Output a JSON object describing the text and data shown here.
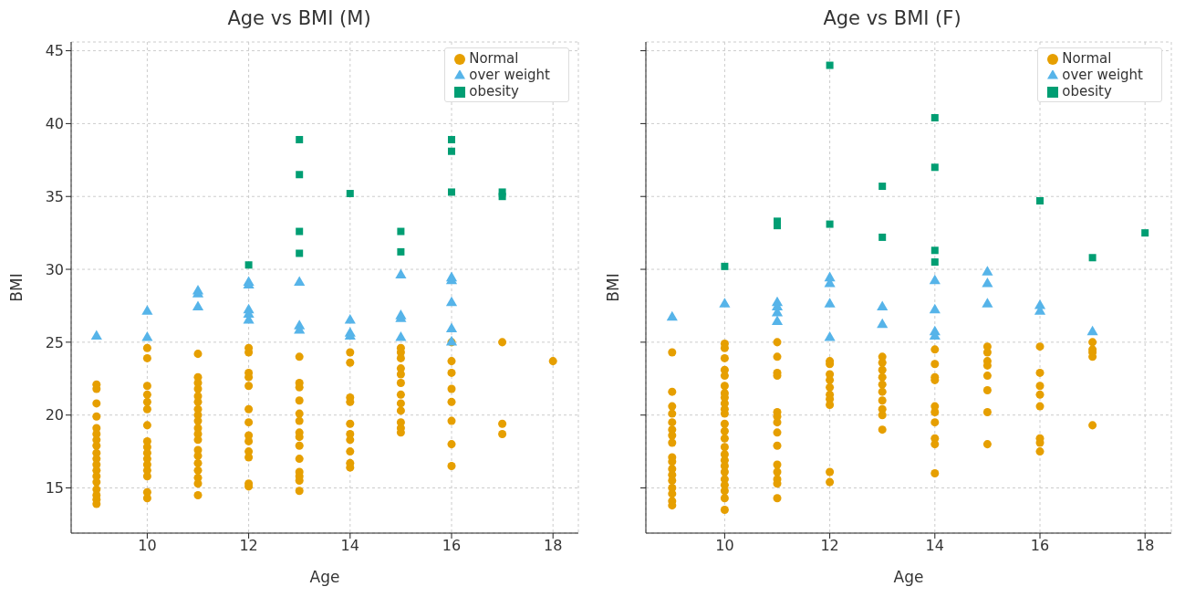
{
  "chart_data": [
    {
      "type": "scatter",
      "title": "Age vs BMI (M)",
      "xlabel": "Age",
      "ylabel": "BMI",
      "xlim": [
        8.5,
        18.5
      ],
      "ylim": [
        11.9,
        45.6
      ],
      "xticks": [
        10,
        12,
        14,
        16,
        18
      ],
      "yticks": [
        15,
        20,
        25,
        30,
        35,
        40,
        45
      ],
      "grid": true,
      "legend": "top right",
      "series": [
        {
          "name": "Normal",
          "color": "#e69f00",
          "marker": "circle",
          "x": [
            9,
            9,
            9,
            9,
            9,
            9,
            9,
            9,
            9,
            9,
            9,
            9,
            9,
            9,
            9,
            9,
            9,
            9,
            10,
            10,
            10,
            10,
            10,
            10,
            10,
            10,
            10,
            10,
            10,
            10,
            10,
            10,
            10,
            10,
            11,
            11,
            11,
            11,
            11,
            11,
            11,
            11,
            11,
            11,
            11,
            11,
            11,
            11,
            11,
            11,
            11,
            11,
            11,
            12,
            12,
            12,
            12,
            12,
            12,
            12,
            12,
            12,
            12,
            12,
            12,
            12,
            13,
            13,
            13,
            13,
            13,
            13,
            13,
            13,
            13,
            13,
            13,
            13,
            13,
            13,
            14,
            14,
            14,
            14,
            14,
            14,
            14,
            14,
            14,
            14,
            15,
            15,
            15,
            15,
            15,
            15,
            15,
            15,
            15,
            15,
            15,
            15,
            16,
            16,
            16,
            16,
            16,
            16,
            16,
            16,
            17,
            17,
            17,
            18
          ],
          "values": [
            22.1,
            21.8,
            20.8,
            19.9,
            19.1,
            18.7,
            18.3,
            17.9,
            17.4,
            17.0,
            16.6,
            16.2,
            15.8,
            15.4,
            14.9,
            14.5,
            14.2,
            13.9,
            24.6,
            23.9,
            22.0,
            21.4,
            20.9,
            20.4,
            19.3,
            18.2,
            17.8,
            17.4,
            17.0,
            16.6,
            16.2,
            15.8,
            14.7,
            14.3,
            24.2,
            22.6,
            22.2,
            21.8,
            21.3,
            20.9,
            20.4,
            20.0,
            19.6,
            19.1,
            18.7,
            18.3,
            17.6,
            17.2,
            16.7,
            16.2,
            15.7,
            15.3,
            14.5,
            24.6,
            24.3,
            22.9,
            22.6,
            22.0,
            20.4,
            19.5,
            18.6,
            18.2,
            17.5,
            17.1,
            15.3,
            15.1,
            24.0,
            22.2,
            21.9,
            21.0,
            20.1,
            19.6,
            18.8,
            18.5,
            17.9,
            17.0,
            16.1,
            15.8,
            15.5,
            14.8,
            24.3,
            23.6,
            21.2,
            20.9,
            19.4,
            18.7,
            18.3,
            17.5,
            16.7,
            16.4,
            24.6,
            24.3,
            23.9,
            23.2,
            22.8,
            22.2,
            21.4,
            20.8,
            20.3,
            19.5,
            19.1,
            18.8,
            25.0,
            23.7,
            22.9,
            21.8,
            20.9,
            19.6,
            18.0,
            16.5,
            25.0,
            19.4,
            18.7,
            23.7
          ]
        },
        {
          "name": "over weight",
          "color": "#56b4e9",
          "marker": "triangle",
          "x": [
            9,
            10,
            10,
            11,
            11,
            11,
            12,
            12,
            12,
            12,
            12,
            13,
            13,
            13,
            14,
            14,
            14,
            15,
            15,
            15,
            15,
            16,
            16,
            16,
            16,
            16
          ],
          "values": [
            25.4,
            27.1,
            25.3,
            28.5,
            28.3,
            27.4,
            29.1,
            28.9,
            27.2,
            26.9,
            26.5,
            29.1,
            26.1,
            25.8,
            26.5,
            25.6,
            25.4,
            29.6,
            26.8,
            26.6,
            25.3,
            29.4,
            29.2,
            27.7,
            25.9,
            25.0
          ]
        },
        {
          "name": "obesity",
          "color": "#009e73",
          "marker": "square",
          "x": [
            12,
            13,
            13,
            13,
            13,
            14,
            15,
            15,
            16,
            16,
            16,
            17,
            17
          ],
          "values": [
            30.3,
            38.9,
            36.5,
            32.6,
            31.1,
            35.2,
            32.6,
            31.2,
            38.9,
            38.1,
            35.3,
            35.3,
            35.0
          ]
        }
      ]
    },
    {
      "type": "scatter",
      "title": "Age vs BMI (F)",
      "xlabel": "Age",
      "ylabel": "BMI",
      "xlim": [
        8.5,
        18.5
      ],
      "ylim": [
        11.9,
        45.6
      ],
      "xticks": [
        10,
        12,
        14,
        16,
        18
      ],
      "yticks": [
        15,
        20,
        25,
        30,
        35,
        40,
        45
      ],
      "grid": true,
      "legend": "top right",
      "tick_labels": "x",
      "series": [
        {
          "name": "Normal",
          "color": "#e69f00",
          "marker": "circle",
          "x": [
            9,
            9,
            9,
            9,
            9,
            9,
            9,
            9,
            9,
            9,
            9,
            9,
            9,
            9,
            9,
            9,
            9,
            10,
            10,
            10,
            10,
            10,
            10,
            10,
            10,
            10,
            10,
            10,
            10,
            10,
            10,
            10,
            10,
            10,
            10,
            10,
            10,
            10,
            10,
            10,
            10,
            11,
            11,
            11,
            11,
            11,
            11,
            11,
            11,
            11,
            11,
            11,
            11,
            11,
            11,
            12,
            12,
            12,
            12,
            12,
            12,
            12,
            12,
            12,
            12,
            13,
            13,
            13,
            13,
            13,
            13,
            13,
            13,
            13,
            13,
            14,
            14,
            14,
            14,
            14,
            14,
            14,
            14,
            14,
            14,
            15,
            15,
            15,
            15,
            15,
            15,
            15,
            15,
            16,
            16,
            16,
            16,
            16,
            16,
            16,
            16,
            17,
            17,
            17,
            17,
            17
          ],
          "values": [
            24.3,
            21.6,
            20.6,
            20.1,
            19.5,
            19.0,
            18.6,
            18.1,
            17.1,
            16.8,
            16.3,
            15.9,
            15.5,
            15.0,
            14.6,
            14.1,
            13.8,
            24.9,
            24.6,
            23.9,
            23.1,
            22.7,
            22.0,
            21.5,
            21.2,
            20.8,
            20.4,
            20.1,
            19.4,
            18.9,
            18.4,
            17.8,
            17.3,
            16.9,
            16.5,
            16.1,
            15.6,
            15.2,
            14.8,
            14.3,
            13.5,
            25.0,
            24.0,
            22.9,
            22.7,
            20.2,
            19.9,
            19.5,
            18.8,
            17.9,
            16.6,
            16.1,
            15.6,
            15.3,
            14.3,
            23.7,
            23.5,
            22.8,
            22.4,
            21.9,
            21.4,
            21.1,
            20.7,
            16.1,
            15.4,
            24.0,
            23.6,
            23.1,
            22.6,
            22.1,
            21.6,
            21.0,
            20.4,
            20.0,
            19.0,
            24.5,
            23.5,
            22.6,
            22.4,
            20.6,
            20.2,
            19.5,
            18.4,
            18.0,
            16.0,
            24.7,
            24.3,
            23.7,
            23.4,
            22.7,
            21.7,
            20.2,
            18.0,
            24.7,
            22.9,
            22.0,
            21.4,
            20.6,
            18.4,
            18.1,
            17.5,
            25.0,
            24.5,
            24.3,
            24.0,
            19.3
          ]
        },
        {
          "name": "over weight",
          "color": "#56b4e9",
          "marker": "triangle",
          "x": [
            9,
            10,
            11,
            11,
            11,
            11,
            12,
            12,
            12,
            12,
            13,
            13,
            14,
            14,
            14,
            14,
            15,
            15,
            15,
            16,
            16,
            17
          ],
          "values": [
            26.7,
            27.6,
            27.7,
            27.4,
            27.0,
            26.4,
            29.4,
            29.0,
            27.6,
            25.3,
            27.4,
            26.2,
            29.2,
            27.2,
            25.7,
            25.4,
            29.8,
            29.0,
            27.6,
            27.5,
            27.1,
            25.7
          ]
        },
        {
          "name": "obesity",
          "color": "#009e73",
          "marker": "square",
          "x": [
            10,
            11,
            11,
            12,
            12,
            13,
            13,
            14,
            14,
            14,
            14,
            16,
            17,
            18
          ],
          "values": [
            30.2,
            33.3,
            33.0,
            44.0,
            33.1,
            35.7,
            32.2,
            40.4,
            37.0,
            31.3,
            30.5,
            34.7,
            30.8,
            32.5
          ]
        }
      ]
    }
  ]
}
